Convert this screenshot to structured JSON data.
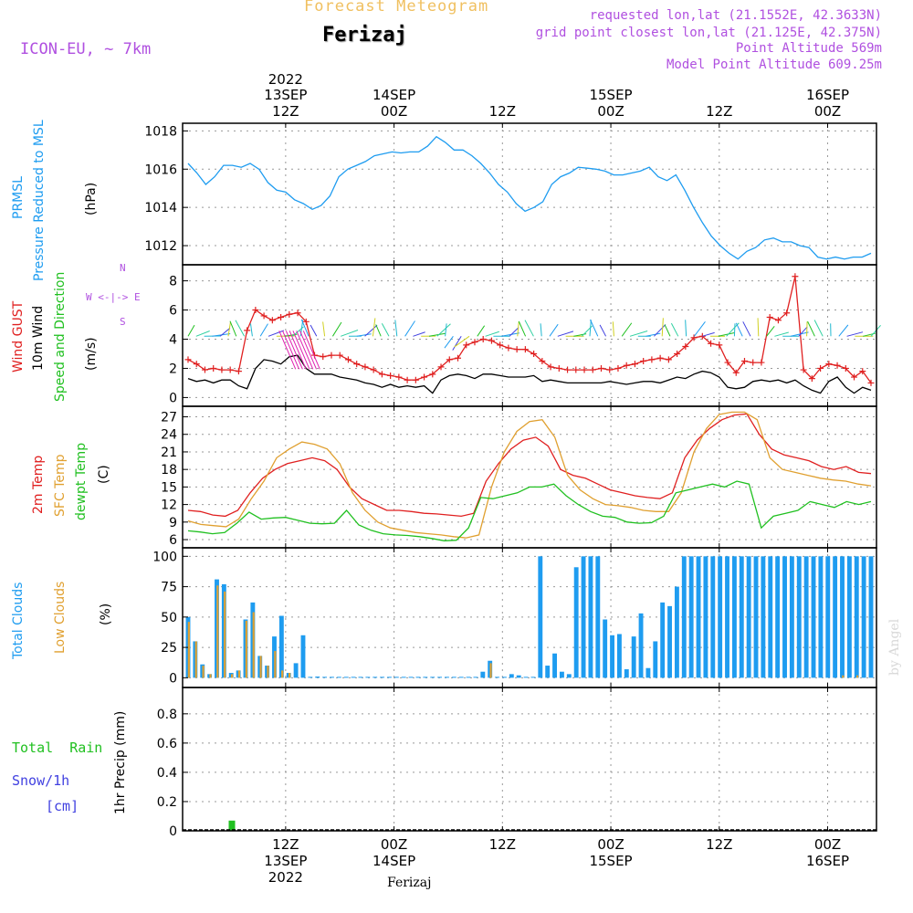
{
  "header": {
    "subtitle": "Forecast Meteogram",
    "station": "Ferizaj",
    "model": "ICON-EU, ~ 7km",
    "requested": "requested lon,lat (21.1552E, 42.3633N)",
    "gridpoint": "grid point closest lon,lat (21.125E, 42.375N)",
    "point_alt": "Point Altitude 569m",
    "model_alt": "Model Point Altitude 609.25m",
    "credit": "by Angel",
    "footer_station": "Ferizaj"
  },
  "colors": {
    "cyan": "#1e9cf0",
    "red": "#e02020",
    "orange": "#e0a030",
    "green": "#20c020",
    "blue": "#4040e0",
    "purple": "#b050e0",
    "gold": "#f0c060"
  },
  "time_axis": {
    "t_start": 0,
    "t_end": 63,
    "top_labels": [
      {
        "t": 9,
        "l1": "2022",
        "l2": "13SEP",
        "l3": "12Z"
      },
      {
        "t": 19,
        "l1": "",
        "l2": "14SEP",
        "l3": "00Z"
      },
      {
        "t": 29,
        "l1": "",
        "l2": "",
        "l3": "12Z"
      },
      {
        "t": 39,
        "l1": "",
        "l2": "15SEP",
        "l3": "00Z"
      },
      {
        "t": 49,
        "l1": "",
        "l2": "",
        "l3": "12Z"
      },
      {
        "t": 59,
        "l1": "",
        "l2": "16SEP",
        "l3": "00Z"
      }
    ],
    "bottom_labels": [
      {
        "t": 9,
        "l1": "12Z",
        "l2": "13SEP",
        "l3": "2022"
      },
      {
        "t": 19,
        "l1": "00Z",
        "l2": "14SEP",
        "l3": ""
      },
      {
        "t": 29,
        "l1": "12Z",
        "l2": "",
        "l3": ""
      },
      {
        "t": 39,
        "l1": "00Z",
        "l2": "15SEP",
        "l3": ""
      },
      {
        "t": 49,
        "l1": "12Z",
        "l2": "",
        "l3": ""
      },
      {
        "t": 59,
        "l1": "00Z",
        "l2": "16SEP",
        "l3": ""
      }
    ]
  },
  "panel_labels": {
    "pressure": [
      "PRMSL",
      "Pressure Reduced to MSL",
      "(hPa)"
    ],
    "wind": [
      "Wind GUST",
      "10m Wind",
      "Speed and Direction",
      "(m/s)"
    ],
    "compass": [
      "N",
      "W <-|-> E",
      "S"
    ],
    "temp": [
      "2m Temp",
      "SFC Temp",
      "dewpt Temp",
      "(C)"
    ],
    "clouds": [
      "Total Clouds",
      "Low Clouds",
      "(%)"
    ],
    "precip_left": [
      "Total  Rain",
      "Snow/1h",
      "[cm]"
    ],
    "precip_axis": "1hr Precip (mm)"
  },
  "chart_data": [
    {
      "type": "line",
      "name": "pressure",
      "title": "PRMSL Pressure Reduced to MSL",
      "ylabel": "hPa",
      "ylim": [
        1011,
        1018.4
      ],
      "yticks": [
        1012,
        1014,
        1016,
        1018
      ],
      "series": [
        {
          "name": "PRMSL",
          "color": "#1e9cf0",
          "values": [
            1016.3,
            1015.8,
            1015.2,
            1015.6,
            1016.2,
            1016.2,
            1016.1,
            1016.3,
            1016.0,
            1015.3,
            1014.9,
            1014.8,
            1014.4,
            1014.2,
            1013.9,
            1014.1,
            1014.6,
            1015.6,
            1016.0,
            1016.2,
            1016.4,
            1016.7,
            1016.8,
            1016.9,
            1016.85,
            1016.9,
            1016.9,
            1017.2,
            1017.7,
            1017.4,
            1017.0,
            1017.0,
            1016.7,
            1016.3,
            1015.8,
            1015.2,
            1014.8,
            1014.2,
            1013.8,
            1014.0,
            1014.3,
            1015.2,
            1015.6,
            1015.8,
            1016.1,
            1016.05,
            1016.0,
            1015.9,
            1015.7,
            1015.7,
            1015.8,
            1015.9,
            1016.1,
            1015.6,
            1015.4,
            1015.7,
            1014.9,
            1014.0,
            1013.2,
            1012.5,
            1012.0,
            1011.6,
            1011.3,
            1011.7,
            1011.9,
            1012.3,
            1012.4,
            1012.2,
            1012.2,
            1012.0,
            1011.9,
            1011.4,
            1011.3,
            1011.4,
            1011.3,
            1011.4,
            1011.4,
            1011.6
          ]
        }
      ]
    },
    {
      "type": "line",
      "name": "wind",
      "title": "Wind GUST / 10m Wind Speed and Direction",
      "ylabel": "m/s",
      "ylim": [
        -0.6,
        9.1
      ],
      "yticks": [
        0,
        2,
        4,
        6,
        8
      ],
      "series": [
        {
          "name": "Wind GUST",
          "color": "#e02020",
          "values": [
            2.6,
            2.3,
            1.9,
            2.0,
            1.9,
            1.9,
            1.8,
            4.6,
            6.0,
            5.6,
            5.3,
            5.5,
            5.7,
            5.8,
            5.2,
            2.9,
            2.8,
            2.9,
            2.9,
            2.6,
            2.3,
            2.1,
            1.9,
            1.6,
            1.5,
            1.4,
            1.2,
            1.2,
            1.4,
            1.6,
            2.1,
            2.6,
            2.7,
            3.6,
            3.8,
            4.0,
            3.9,
            3.6,
            3.4,
            3.3,
            3.3,
            3.0,
            2.5,
            2.1,
            2.0,
            1.9,
            1.9,
            1.9,
            1.9,
            2.0,
            1.9,
            2.0,
            2.2,
            2.3,
            2.5,
            2.6,
            2.7,
            2.6,
            3.0,
            3.5,
            4.1,
            4.2,
            3.7,
            3.6,
            2.4,
            1.7,
            2.5,
            2.4,
            2.4,
            5.5,
            5.3,
            5.8,
            8.3,
            1.9,
            1.3,
            2.0,
            2.3,
            2.2,
            2.0,
            1.4,
            1.8,
            1.0
          ]
        },
        {
          "name": "10m Wind",
          "color": "#000000",
          "values": [
            1.3,
            1.1,
            1.2,
            1.0,
            1.2,
            1.2,
            0.8,
            0.6,
            2.0,
            2.6,
            2.5,
            2.3,
            2.8,
            2.9,
            2.0,
            1.6,
            1.6,
            1.6,
            1.4,
            1.3,
            1.2,
            1.0,
            0.9,
            0.7,
            0.9,
            0.7,
            0.8,
            0.7,
            0.8,
            0.3,
            1.2,
            1.5,
            1.6,
            1.5,
            1.3,
            1.6,
            1.6,
            1.5,
            1.4,
            1.4,
            1.4,
            1.5,
            1.1,
            1.2,
            1.1,
            1.0,
            1.0,
            1.0,
            1.0,
            1.0,
            1.1,
            1.0,
            0.9,
            1.0,
            1.1,
            1.1,
            1.0,
            1.2,
            1.4,
            1.3,
            1.6,
            1.8,
            1.7,
            1.4,
            0.7,
            0.6,
            0.7,
            1.1,
            1.2,
            1.1,
            1.2,
            1.0,
            1.2,
            0.8,
            0.5,
            0.3,
            1.1,
            1.4,
            0.7,
            0.3,
            0.7,
            0.5
          ]
        }
      ]
    },
    {
      "type": "line",
      "name": "temperature",
      "title": "2m Temp / SFC Temp / dewpt Temp",
      "ylabel": "C",
      "ylim": [
        4.6,
        28.8
      ],
      "yticks": [
        6,
        9,
        12,
        15,
        18,
        21,
        24,
        27
      ],
      "series": [
        {
          "name": "2m Temp",
          "color": "#e02020",
          "values": [
            11.0,
            10.8,
            10.2,
            10.0,
            11.0,
            14.0,
            16.5,
            18.0,
            19.0,
            19.5,
            20.0,
            19.5,
            18.0,
            15.0,
            13.0,
            12.0,
            11.0,
            11.0,
            10.8,
            10.5,
            10.4,
            10.2,
            10.0,
            10.5,
            16.0,
            19.0,
            21.5,
            23.0,
            23.5,
            22.0,
            18.0,
            17.0,
            16.5,
            15.5,
            14.5,
            14.0,
            13.5,
            13.2,
            13.0,
            14.0,
            20.0,
            23.0,
            25.0,
            26.5,
            27.3,
            27.5,
            24.0,
            21.5,
            20.5,
            20.0,
            19.5,
            18.5,
            18.0,
            18.5,
            17.5,
            17.3
          ]
        },
        {
          "name": "SFC Temp",
          "color": "#e0a030",
          "values": [
            9.2,
            8.6,
            8.4,
            8.2,
            9.5,
            13.0,
            16.0,
            20.0,
            21.5,
            22.7,
            22.3,
            21.5,
            19.0,
            14.0,
            11.0,
            9.0,
            8.0,
            7.6,
            7.2,
            7.0,
            6.8,
            6.5,
            6.3,
            6.8,
            15.0,
            21.0,
            24.5,
            26.2,
            26.5,
            23.5,
            17.0,
            14.5,
            13.0,
            12.0,
            11.8,
            11.5,
            11.0,
            10.8,
            10.8,
            14.0,
            21.0,
            25.0,
            27.4,
            27.8,
            27.8,
            26.5,
            20.0,
            18.0,
            17.5,
            17.0,
            16.5,
            16.2,
            16.0,
            15.5,
            15.2
          ]
        },
        {
          "name": "dewpt Temp",
          "color": "#20c020",
          "values": [
            7.5,
            7.3,
            7.0,
            7.2,
            8.8,
            10.7,
            9.5,
            9.7,
            9.8,
            9.3,
            8.8,
            8.7,
            8.8,
            11.0,
            8.5,
            7.6,
            7.0,
            6.8,
            6.7,
            6.5,
            6.2,
            5.8,
            5.9,
            8.0,
            13.2,
            13.0,
            13.5,
            14.0,
            15.0,
            15.0,
            15.5,
            13.5,
            12.0,
            10.8,
            10.0,
            9.8,
            9.0,
            8.8,
            8.9,
            10.0,
            14.0,
            14.5,
            15.0,
            15.5,
            15.0,
            16.0,
            15.5,
            8.0,
            10.0,
            10.5,
            11.0,
            12.5,
            12.0,
            11.5,
            12.5,
            12.0,
            12.5
          ]
        }
      ]
    },
    {
      "type": "bar",
      "name": "clouds",
      "title": "Total Clouds / Low Clouds",
      "ylabel": "%",
      "ylim": [
        -8,
        107
      ],
      "yticks": [
        0,
        25,
        50,
        75,
        100
      ],
      "series": [
        {
          "name": "Total Clouds",
          "color": "#1e9cf0",
          "values": [
            50,
            30,
            11,
            3,
            81,
            77,
            4,
            6,
            48,
            62,
            18,
            10,
            34,
            51,
            4,
            12,
            35,
            0,
            1,
            0,
            0,
            0,
            0,
            0,
            0,
            0,
            0,
            0,
            0,
            0,
            0,
            0,
            0,
            0,
            0,
            0,
            0,
            0,
            0,
            0,
            0,
            5,
            14,
            0,
            0,
            3,
            2,
            0,
            0,
            100,
            10,
            20,
            5,
            3,
            91,
            100,
            100,
            100,
            48,
            35,
            36,
            7,
            34,
            53,
            8,
            30,
            62,
            59,
            75,
            100,
            100,
            100,
            100,
            100,
            100,
            100,
            100,
            100,
            100,
            100,
            100,
            100,
            100,
            100,
            100,
            100,
            100,
            100,
            100,
            100,
            100,
            100,
            100,
            100,
            100,
            100
          ]
        },
        {
          "name": "Low Clouds",
          "color": "#e0a030",
          "values": [
            46,
            30,
            10,
            3,
            76,
            71,
            3,
            6,
            47,
            54,
            18,
            10,
            22,
            6,
            4,
            0,
            0,
            0,
            0,
            0,
            0,
            0,
            0,
            0,
            0,
            0,
            0,
            0,
            0,
            0,
            0,
            0,
            0,
            0,
            0,
            0,
            0,
            0,
            0,
            0,
            0,
            0,
            12,
            0,
            0,
            0,
            0,
            0,
            0,
            0,
            0,
            0,
            0,
            0,
            0,
            0,
            0,
            0,
            0,
            0,
            0,
            0,
            0,
            0,
            0,
            0,
            0,
            0,
            0,
            0,
            0,
            0,
            0,
            0,
            0,
            0,
            0,
            0,
            0,
            0,
            0,
            0,
            0,
            0,
            0,
            0,
            0,
            0,
            0,
            0,
            0,
            2,
            0,
            2,
            0,
            0
          ]
        }
      ]
    },
    {
      "type": "bar",
      "name": "precipitation",
      "title": "1hr Precip",
      "ylabel": "1hr Precip (mm)",
      "ylim": [
        0,
        0.98
      ],
      "yticks": [
        0,
        0.2,
        0.4,
        0.6,
        0.8
      ],
      "series": [
        {
          "name": "Total Rain",
          "color": "#20c020",
          "points": [
            {
              "t": 4,
              "v": 0.07
            }
          ]
        }
      ]
    }
  ]
}
